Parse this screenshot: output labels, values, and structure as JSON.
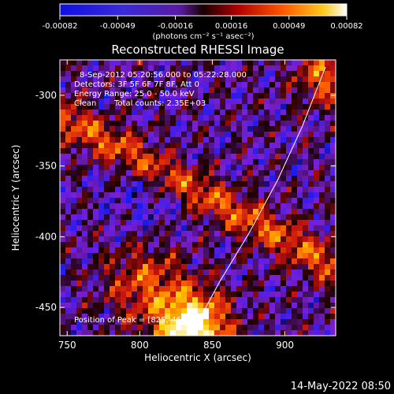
{
  "chart_data": {
    "type": "heatmap",
    "title": "Reconstructed RHESSI Image",
    "xlabel": "Heliocentric X (arcsec)",
    "ylabel": "Heliocentric Y (arcsec)",
    "xlim": [
      745,
      935
    ],
    "ylim": [
      -470,
      -275
    ],
    "x_ticks": [
      750,
      800,
      850,
      900
    ],
    "y_ticks": [
      -300,
      -350,
      -400,
      -450
    ],
    "colorbar": {
      "ticks": [
        "-0.00082",
        "-0.00049",
        "-0.00016",
        "0.00016",
        "0.00049",
        "0.00082"
      ],
      "range": [
        -0.00082,
        0.00082
      ],
      "unit_label": "(photons cm⁻² s⁻¹ asec⁻²)",
      "colormap": [
        "#000000",
        "#1c1cf0",
        "#7a1fd6",
        "#1a0000",
        "#c01010",
        "#ff6000",
        "#ffd000",
        "#ffffff"
      ]
    },
    "annotations": [
      "8-Sep-2012 05:20:56.000 to 05:22:28.000",
      "Detectors: 3F 5F 6F 7F 8F, Att 0",
      "Energy Range: 25.0 - 50.0 keV",
      "Clean",
      "Total counts: 2.35E+03"
    ],
    "peak_label": "Position of Peak = [825,-460]",
    "limb_curve": [
      [
        835,
        -470
      ],
      [
        855,
        -432
      ],
      [
        875,
        -398
      ],
      [
        895,
        -360
      ],
      [
        912,
        -322
      ],
      [
        928,
        -280
      ]
    ]
  },
  "footer": {
    "timestamp": "14-May-2022 08:50"
  }
}
